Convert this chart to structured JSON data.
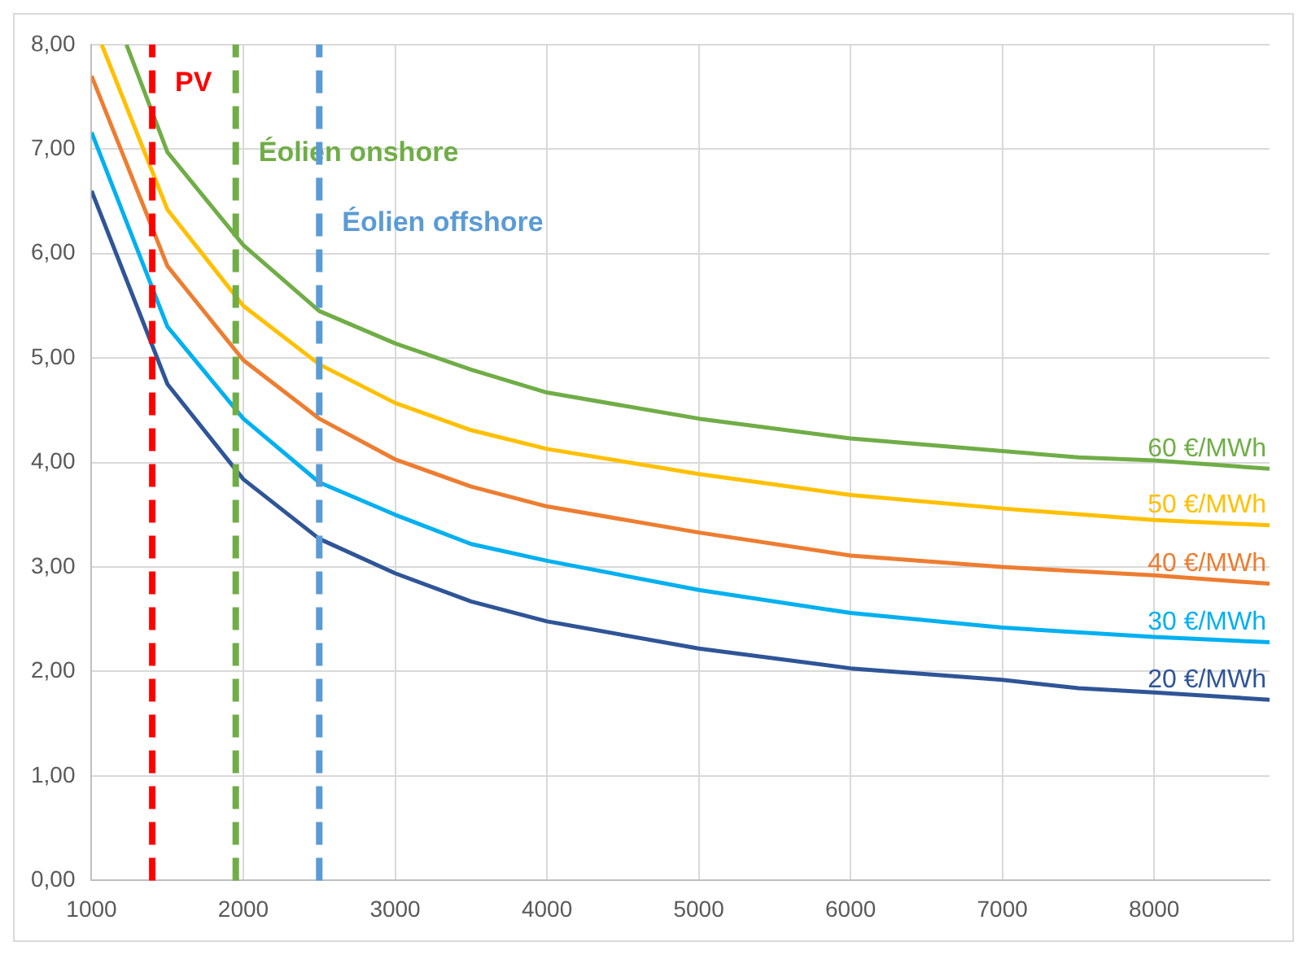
{
  "chart_data": {
    "type": "line",
    "xlim": [
      1000,
      8760
    ],
    "xticks": [
      1000,
      2000,
      3000,
      4000,
      5000,
      6000,
      7000,
      8000
    ],
    "ylim": [
      0,
      8
    ],
    "yticks": [
      {
        "value": 0,
        "label": "0,00"
      },
      {
        "value": 1,
        "label": "1,00"
      },
      {
        "value": 2,
        "label": "2,00"
      },
      {
        "value": 3,
        "label": "3,00"
      },
      {
        "value": 4,
        "label": "4,00"
      },
      {
        "value": 5,
        "label": "5,00"
      },
      {
        "value": 6,
        "label": "6,00"
      },
      {
        "value": 7,
        "label": "7,00"
      },
      {
        "value": 8,
        "label": "8,00"
      }
    ],
    "grid": true,
    "legend": false,
    "marker": "none",
    "line_style": "solid",
    "series": [
      {
        "name": "60 €/MWh",
        "color": "#70ad47",
        "x": [
          1230,
          1500,
          2000,
          2500,
          3000,
          3500,
          4000,
          5000,
          6000,
          7000,
          7500,
          8000,
          8760
        ],
        "values": [
          8.0,
          6.97,
          6.08,
          5.45,
          5.14,
          4.89,
          4.67,
          4.42,
          4.23,
          4.11,
          4.05,
          4.02,
          3.94
        ]
      },
      {
        "name": "50 €/MWh",
        "color": "#ffc000",
        "x": [
          1067,
          1500,
          2000,
          2500,
          3000,
          3500,
          4000,
          5000,
          6000,
          7000,
          8000,
          8760
        ],
        "values": [
          8.0,
          6.42,
          5.5,
          4.94,
          4.57,
          4.31,
          4.13,
          3.89,
          3.69,
          3.56,
          3.45,
          3.4
        ]
      },
      {
        "name": "40 €/MWh",
        "color": "#ed7d31",
        "x": [
          1000,
          1500,
          2000,
          2500,
          3000,
          3500,
          4000,
          5000,
          6000,
          7000,
          8000,
          8760
        ],
        "values": [
          7.7,
          5.88,
          4.98,
          4.42,
          4.03,
          3.77,
          3.58,
          3.33,
          3.11,
          3.0,
          2.92,
          2.84
        ]
      },
      {
        "name": "30 €/MWh",
        "color": "#00b0f0",
        "x": [
          1000,
          1500,
          2000,
          2500,
          3000,
          3500,
          4000,
          5000,
          6000,
          7000,
          8000,
          8760
        ],
        "values": [
          7.16,
          5.3,
          4.42,
          3.81,
          3.5,
          3.22,
          3.06,
          2.78,
          2.56,
          2.42,
          2.33,
          2.28
        ]
      },
      {
        "name": "20 €/MWh",
        "color": "#2f5597",
        "x": [
          1000,
          1500,
          2000,
          2500,
          3000,
          3500,
          4000,
          5000,
          6000,
          7000,
          7500,
          8000,
          8760
        ],
        "values": [
          6.6,
          4.75,
          3.84,
          3.27,
          2.94,
          2.67,
          2.48,
          2.22,
          2.03,
          1.92,
          1.84,
          1.8,
          1.73
        ]
      }
    ],
    "ref_lines": [
      {
        "axis": "x",
        "value": 1400,
        "label": "PV",
        "color": "#ff0000",
        "line_style": "dashed"
      },
      {
        "axis": "x",
        "value": 1950,
        "label": "Éolien onshore",
        "color": "#70ad47",
        "line_style": "dashed"
      },
      {
        "axis": "x",
        "value": 2500,
        "label": "Éolien offshore",
        "color": "#5b9bd5",
        "line_style": "dashed"
      }
    ]
  }
}
